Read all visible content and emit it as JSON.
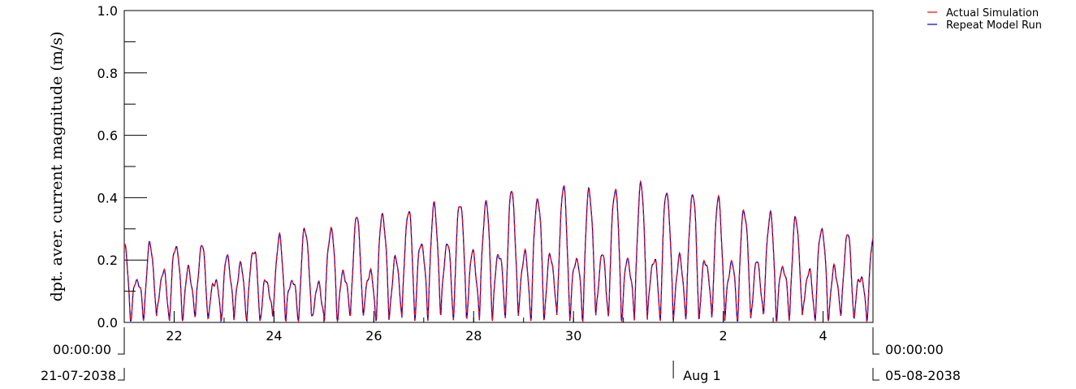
{
  "chart_data": {
    "type": "line",
    "title": "",
    "ylabel": "dpt. aver. current magnitude (m/s)",
    "xlabel": "",
    "x_range": [
      "2038-07-21 00:00:00",
      "2038-08-05 00:00:00"
    ],
    "ylim": [
      0.0,
      1.0
    ],
    "y_ticks": [
      0.0,
      0.2,
      0.4,
      0.6,
      0.8,
      1.0
    ],
    "y_tick_labels": [
      "0.0",
      "0.2",
      "0.4",
      "0.6",
      "0.8",
      "1.0"
    ],
    "x_ticks": [
      {
        "date": "2038-07-22",
        "label": "22"
      },
      {
        "date": "2038-07-24",
        "label": "24"
      },
      {
        "date": "2038-07-26",
        "label": "26"
      },
      {
        "date": "2038-07-28",
        "label": "28"
      },
      {
        "date": "2038-07-30",
        "label": "30"
      },
      {
        "date": "2038-08-02",
        "label": "2"
      },
      {
        "date": "2038-08-04",
        "label": "4"
      }
    ],
    "month_marker": {
      "date": "2038-08-01",
      "label": "Aug 1"
    },
    "start_label": {
      "time": "00:00:00",
      "date": "21-07-2038"
    },
    "end_label": {
      "time": "00:00:00",
      "date": "05-08-2038"
    },
    "grid": false,
    "legend_position": "top-right",
    "peak_envelope": {
      "dates": [
        "2038-07-21 06:00",
        "2038-07-21 18:00",
        "2038-07-22 06:00",
        "2038-07-22 18:00",
        "2038-07-23 06:00",
        "2038-07-23 18:00",
        "2038-07-24 06:00",
        "2038-07-24 18:00",
        "2038-07-25 06:00",
        "2038-07-25 18:00",
        "2038-07-26 06:00",
        "2038-07-26 18:00",
        "2038-07-27 06:00",
        "2038-07-27 18:00",
        "2038-07-28 06:00",
        "2038-07-28 18:00",
        "2038-07-29 06:00",
        "2038-07-29 18:00",
        "2038-07-30 06:00",
        "2038-07-30 18:00",
        "2038-07-31 06:00",
        "2038-07-31 18:00",
        "2038-08-01 06:00",
        "2038-08-01 18:00",
        "2038-08-02 06:00",
        "2038-08-02 18:00",
        "2038-08-03 06:00",
        "2038-08-03 18:00",
        "2038-08-04 06:00",
        "2038-08-04 18:00"
      ],
      "highs": [
        0.24,
        0.25,
        0.25,
        0.24,
        0.19,
        0.26,
        0.27,
        0.31,
        0.3,
        0.34,
        0.35,
        0.36,
        0.37,
        0.39,
        0.38,
        0.42,
        0.4,
        0.43,
        0.42,
        0.43,
        0.44,
        0.42,
        0.42,
        0.4,
        0.37,
        0.35,
        0.34,
        0.31,
        0.3,
        0.26
      ],
      "lows": [
        0.14,
        0.16,
        0.17,
        0.13,
        0.19,
        0.13,
        0.15,
        0.1,
        0.16,
        0.16,
        0.17,
        0.25,
        0.27,
        0.23,
        0.21,
        0.24,
        0.2,
        0.22,
        0.2,
        0.22,
        0.19,
        0.21,
        0.2,
        0.2,
        0.19,
        0.19,
        0.18,
        0.16,
        0.17,
        0.15
      ]
    },
    "series": [
      {
        "name": "Actual Simulation",
        "color": "#ff0000",
        "dash": "6,4"
      },
      {
        "name": "Repeat Model Run",
        "color": "#0000cc",
        "dash": "none"
      }
    ]
  }
}
